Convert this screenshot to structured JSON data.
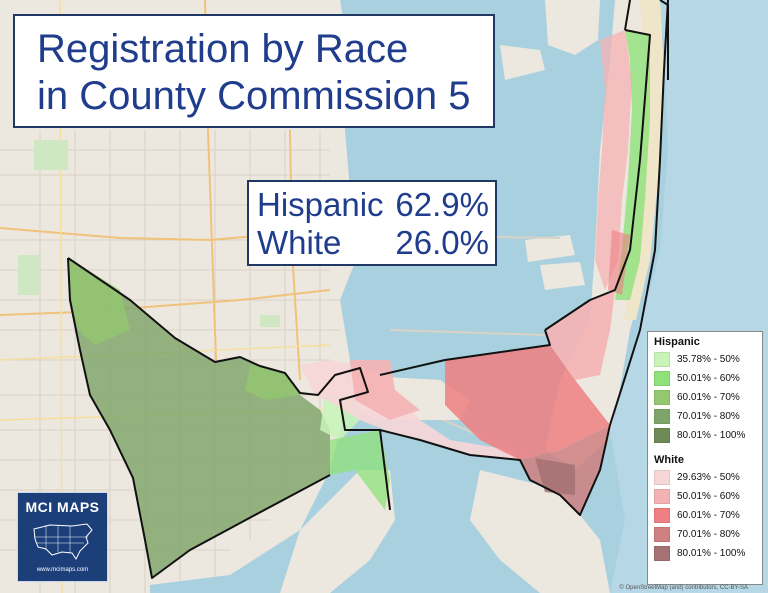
{
  "title": {
    "line1": "Registration by Race",
    "line2": "in County Commission 5"
  },
  "stats": [
    {
      "label": "Hispanic",
      "value": "62.9%"
    },
    {
      "label": "White",
      "value": "26.0%"
    }
  ],
  "logo": {
    "name": "MCI MAPS",
    "url": "www.mcimaps.com"
  },
  "legend": {
    "hispanic": {
      "title": "Hispanic",
      "items": [
        {
          "label": "35.78% - 50%",
          "color": "#c8f4b8"
        },
        {
          "label": "50.01% - 60%",
          "color": "#8fe27a"
        },
        {
          "label": "60.01% - 70%",
          "color": "#93c870"
        },
        {
          "label": "70.01% - 80%",
          "color": "#7ea569"
        },
        {
          "label": "80.01% - 100%",
          "color": "#6d8a57"
        }
      ]
    },
    "white": {
      "title": "White",
      "items": [
        {
          "label": "29.63% - 50%",
          "color": "#f7d6d8"
        },
        {
          "label": "50.01% - 60%",
          "color": "#f5b2b4"
        },
        {
          "label": "60.01% - 70%",
          "color": "#ef7f82"
        },
        {
          "label": "70.01% - 80%",
          "color": "#cf8080"
        },
        {
          "label": "80.01% - 100%",
          "color": "#a57173"
        }
      ]
    }
  },
  "attribution": "© OpenStreetMap (and) contributors, CC-BY-SA"
}
